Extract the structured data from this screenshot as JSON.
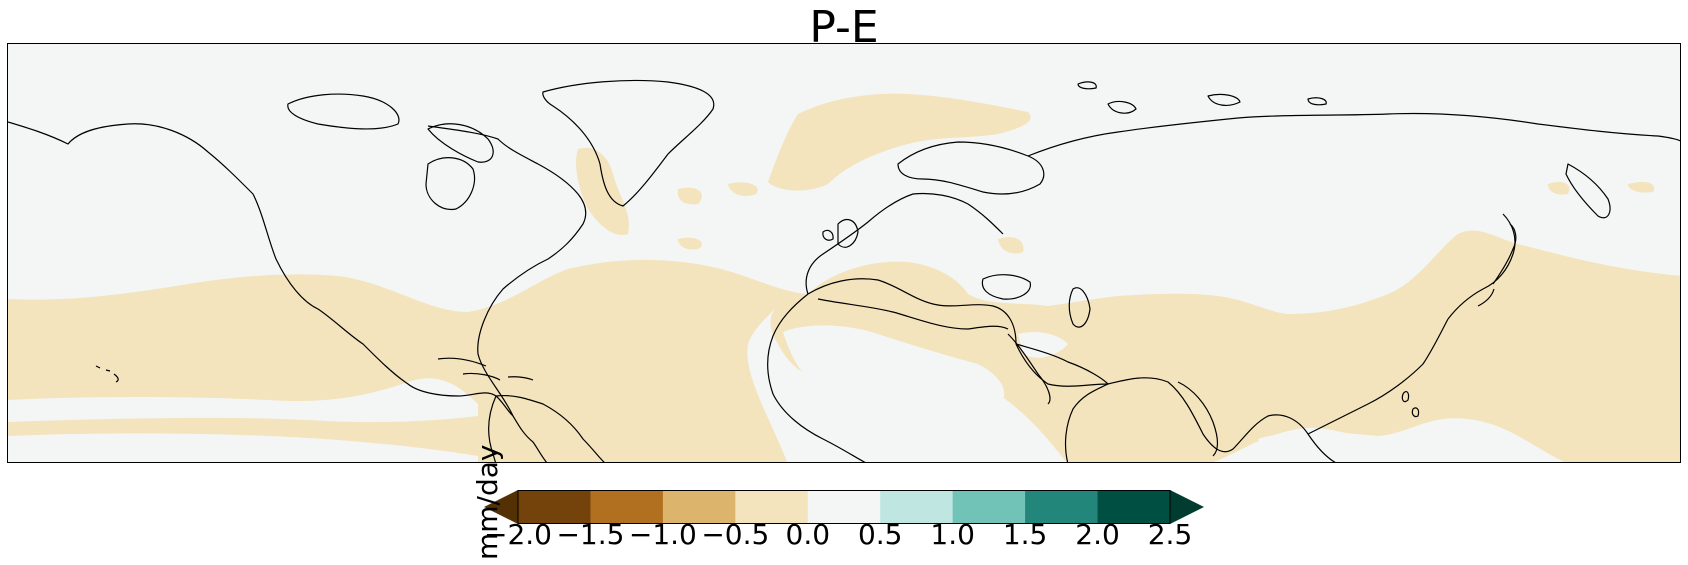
{
  "title": "P-E",
  "colorbar": {
    "label": "mm/day",
    "ticks": [
      "−2.0",
      "−1.5",
      "−1.0",
      "−0.5",
      "0.0",
      "0.5",
      "1.0",
      "1.5",
      "2.0",
      "2.5"
    ],
    "bins": [
      {
        "range": "-2.0 to -1.5",
        "color": "#74420b"
      },
      {
        "range": "-1.5 to -1.0",
        "color": "#b0701f"
      },
      {
        "range": "-1.0 to -0.5",
        "color": "#dcb46c"
      },
      {
        "range": "-0.5 to 0.0",
        "color": "#f3e4bd"
      },
      {
        "range": "0.0 to 0.5",
        "color": "#f4f5f5"
      },
      {
        "range": "0.5 to 1.0",
        "color": "#bfe6e0"
      },
      {
        "range": "1.0 to 1.5",
        "color": "#72c3b7"
      },
      {
        "range": "1.5 to 2.0",
        "color": "#22867b"
      },
      {
        "range": "2.0 to 2.5",
        "color": "#004f43"
      }
    ],
    "extend": "both",
    "under_color": "#543005",
    "over_color": "#003c30"
  },
  "map": {
    "field": "P-E",
    "units": "mm/day",
    "coastline_color": "#000000",
    "levels_shown": [
      "-0.5 to 0.0",
      "0.0 to 0.5"
    ]
  }
}
